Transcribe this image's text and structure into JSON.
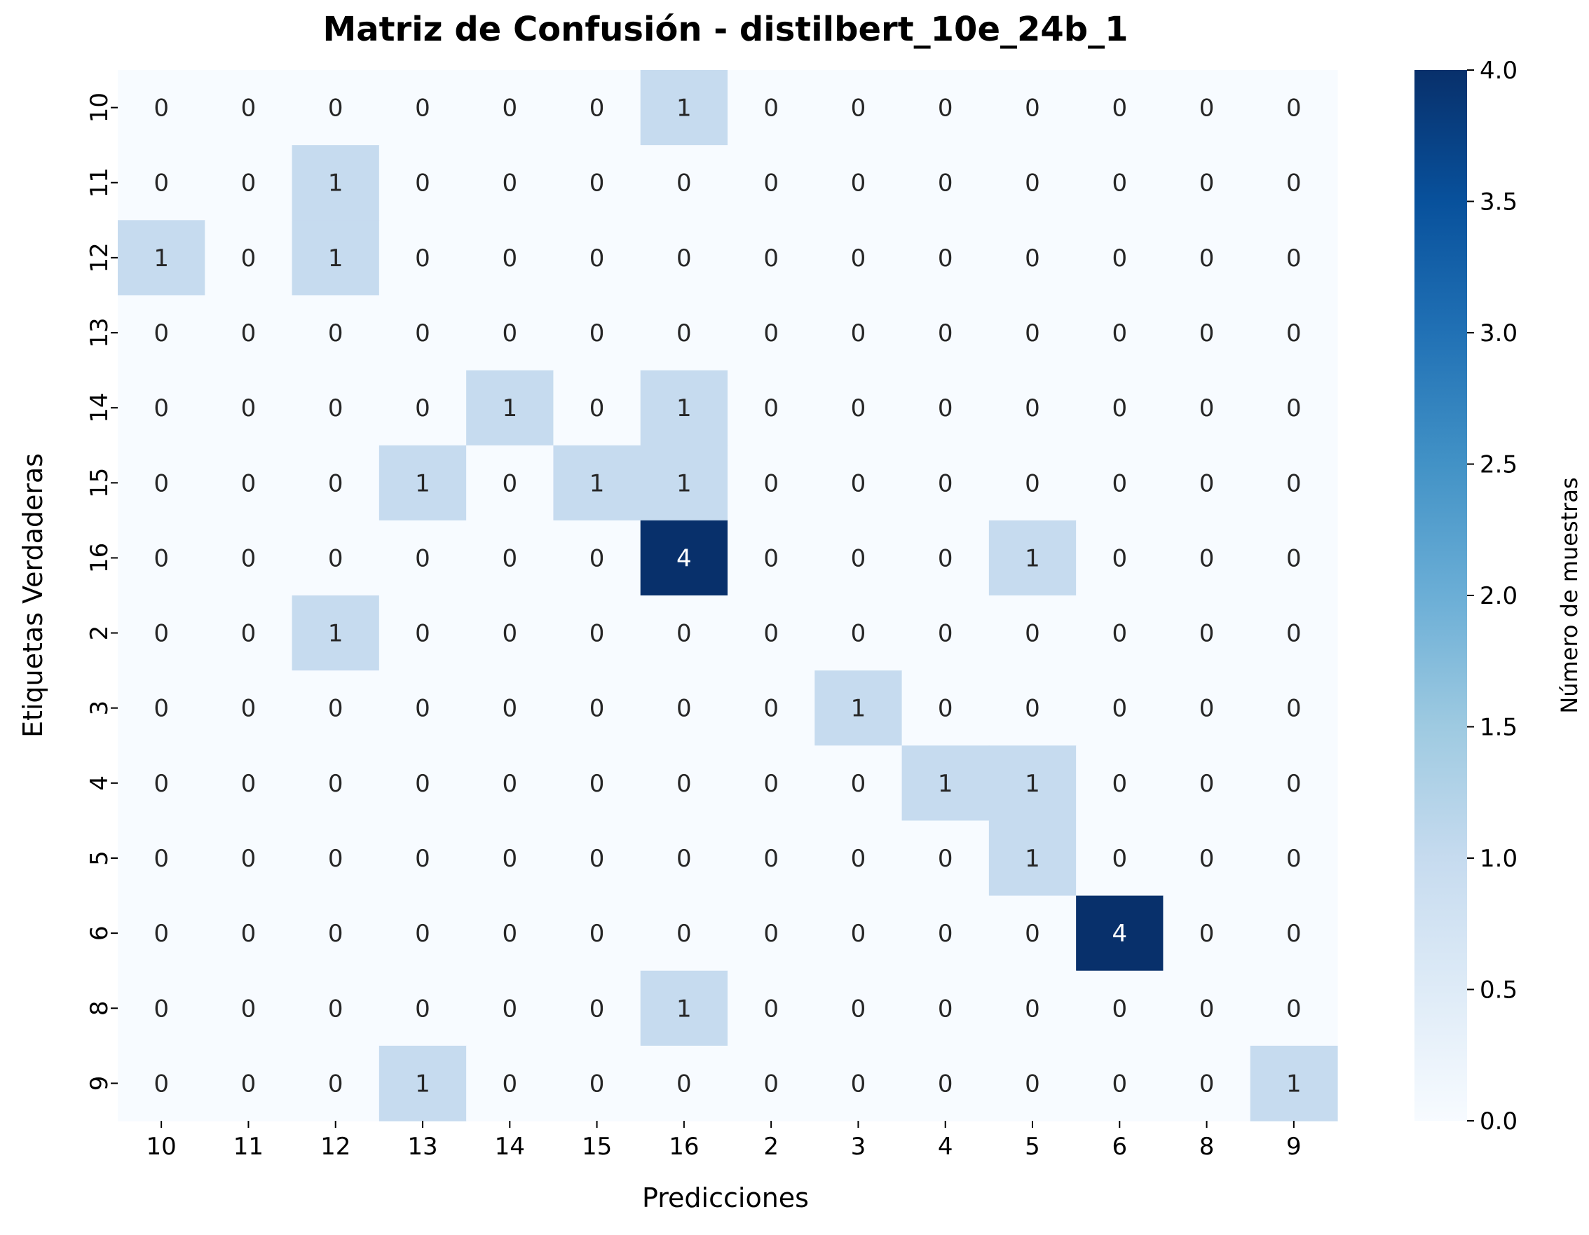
{
  "chart_data": {
    "type": "heatmap",
    "title": "Matriz de Confusión - distilbert_10e_24b_1",
    "xlabel": "Predicciones",
    "ylabel": "Etiquetas Verdaderas",
    "x_categories": [
      "10",
      "11",
      "12",
      "13",
      "14",
      "15",
      "16",
      "2",
      "3",
      "4",
      "5",
      "6",
      "8",
      "9"
    ],
    "y_categories": [
      "10",
      "11",
      "12",
      "13",
      "14",
      "15",
      "16",
      "2",
      "3",
      "4",
      "5",
      "6",
      "8",
      "9"
    ],
    "values": [
      [
        0,
        0,
        0,
        0,
        0,
        0,
        1,
        0,
        0,
        0,
        0,
        0,
        0,
        0
      ],
      [
        0,
        0,
        1,
        0,
        0,
        0,
        0,
        0,
        0,
        0,
        0,
        0,
        0,
        0
      ],
      [
        1,
        0,
        1,
        0,
        0,
        0,
        0,
        0,
        0,
        0,
        0,
        0,
        0,
        0
      ],
      [
        0,
        0,
        0,
        0,
        0,
        0,
        0,
        0,
        0,
        0,
        0,
        0,
        0,
        0
      ],
      [
        0,
        0,
        0,
        0,
        1,
        0,
        1,
        0,
        0,
        0,
        0,
        0,
        0,
        0
      ],
      [
        0,
        0,
        0,
        1,
        0,
        1,
        1,
        0,
        0,
        0,
        0,
        0,
        0,
        0
      ],
      [
        0,
        0,
        0,
        0,
        0,
        0,
        4,
        0,
        0,
        0,
        1,
        0,
        0,
        0
      ],
      [
        0,
        0,
        1,
        0,
        0,
        0,
        0,
        0,
        0,
        0,
        0,
        0,
        0,
        0
      ],
      [
        0,
        0,
        0,
        0,
        0,
        0,
        0,
        0,
        1,
        0,
        0,
        0,
        0,
        0
      ],
      [
        0,
        0,
        0,
        0,
        0,
        0,
        0,
        0,
        0,
        1,
        1,
        0,
        0,
        0
      ],
      [
        0,
        0,
        0,
        0,
        0,
        0,
        0,
        0,
        0,
        0,
        1,
        0,
        0,
        0
      ],
      [
        0,
        0,
        0,
        0,
        0,
        0,
        0,
        0,
        0,
        0,
        0,
        4,
        0,
        0
      ],
      [
        0,
        0,
        0,
        0,
        0,
        0,
        1,
        0,
        0,
        0,
        0,
        0,
        0,
        0
      ],
      [
        0,
        0,
        0,
        1,
        0,
        0,
        0,
        0,
        0,
        0,
        0,
        0,
        0,
        1
      ]
    ],
    "colorbar": {
      "label": "Número de muestras",
      "range": [
        0,
        4
      ],
      "ticks": [
        "0.0",
        "0.5",
        "1.0",
        "1.5",
        "2.0",
        "2.5",
        "3.0",
        "3.5",
        "4.0"
      ],
      "colormap": "Blues",
      "colors": [
        "#f7fbff",
        "#deebf7",
        "#c6dbef",
        "#9ecae1",
        "#6baed6",
        "#4292c6",
        "#2171b5",
        "#08519c",
        "#08306b"
      ]
    },
    "annotations": true,
    "grid": false
  }
}
